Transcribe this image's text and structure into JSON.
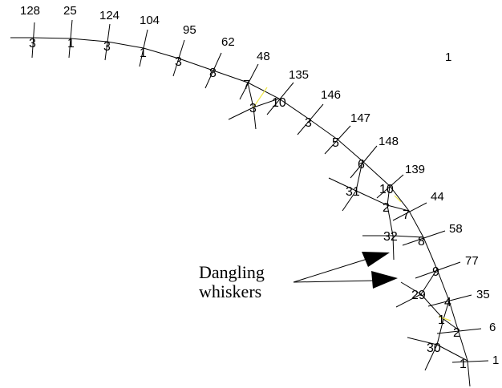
{
  "annotation": {
    "line1": "Dangling",
    "line2": "whiskers"
  },
  "corner_label": "1",
  "top_labels": [
    "128",
    "25",
    "124",
    "104",
    "95",
    "62",
    "48",
    "135",
    "146",
    "147",
    "148",
    "139",
    "44",
    "58",
    "77",
    "35",
    "6",
    "1"
  ],
  "node_labels": [
    "3",
    "1",
    "3",
    "1",
    "3",
    "8",
    "7",
    "3",
    "10",
    "3",
    "5",
    "6",
    "31",
    "10",
    "2",
    "7",
    "32",
    "8",
    "9",
    "29",
    "4",
    "1",
    "2",
    "30",
    "1"
  ]
}
